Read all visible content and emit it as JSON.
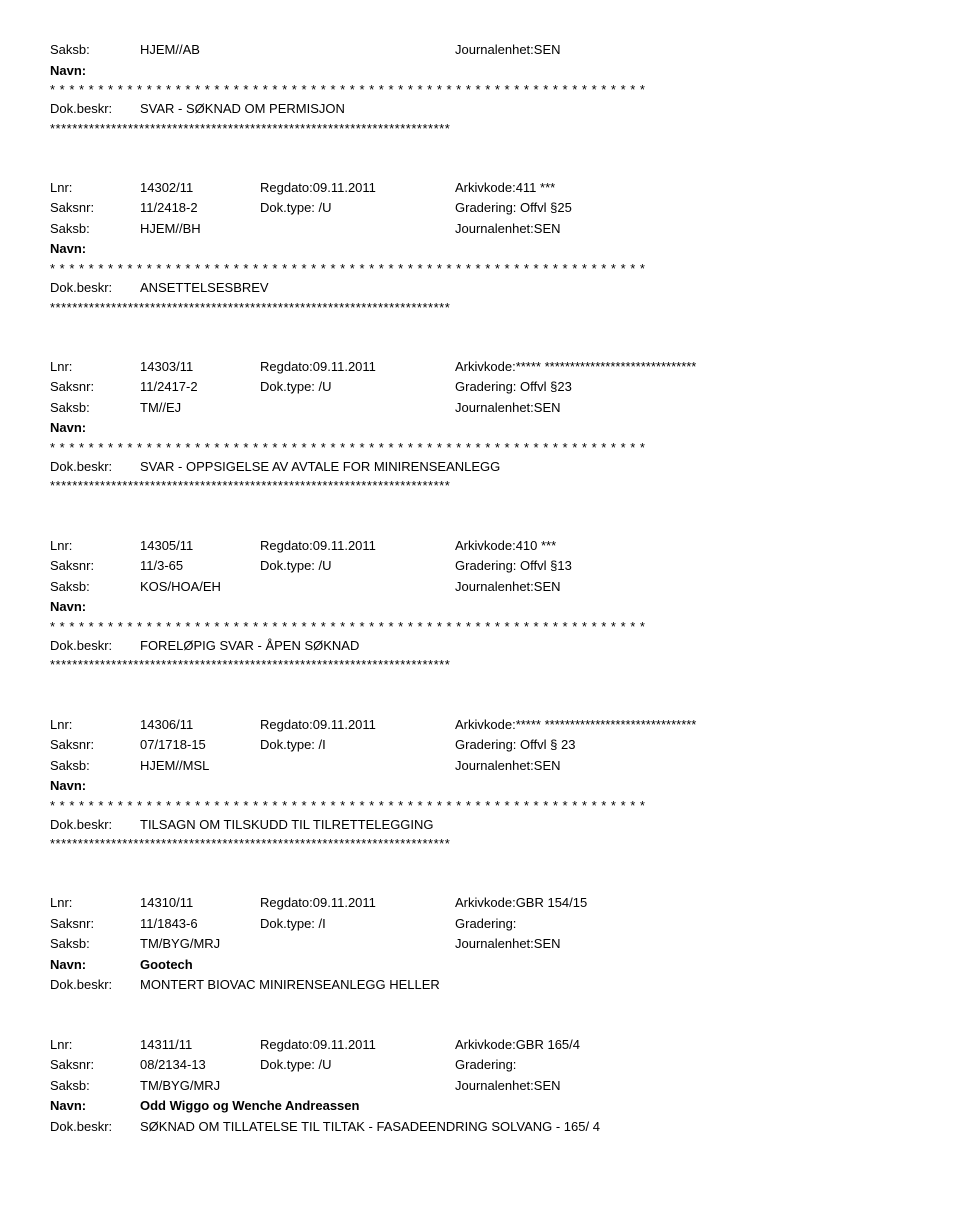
{
  "labels": {
    "saksb": "Saksb:",
    "navn": "Navn:",
    "dokbeskr": "Dok.beskr:",
    "lnr": "Lnr:",
    "saksnr": "Saksnr:"
  },
  "stars62": "* * * * * * * * * * * * * * * * * * * * * * * * * * * * * * * * * * * * * * * * * * * * * * * * * * * * * * * * * * * * * *",
  "stars72": "************************************************************************",
  "entries": [
    {
      "saksb_v1": "HJEM//AB",
      "saksb_v3": "Journalenhet:SEN",
      "dokbeskr": "SVAR - SØKNAD OM PERMISJON"
    },
    {
      "lnr_v1": "14302/11",
      "lnr_v2": "Regdato:09.11.2011",
      "lnr_v3": "Arkivkode:411 ***",
      "saksnr_v1": "11/2418-2",
      "saksnr_v2": "Dok.type: /U",
      "saksnr_v3": "Gradering: Offvl §25",
      "saksb_v1": "HJEM//BH",
      "saksb_v3": "Journalenhet:SEN",
      "dokbeskr": "ANSETTELSESBREV"
    },
    {
      "lnr_v1": "14303/11",
      "lnr_v2": "Regdato:09.11.2011",
      "lnr_v3": "Arkivkode:***** ******************************",
      "saksnr_v1": "11/2417-2",
      "saksnr_v2": "Dok.type: /U",
      "saksnr_v3": "Gradering: Offvl §23",
      "saksb_v1": "TM//EJ",
      "saksb_v3": "Journalenhet:SEN",
      "dokbeskr": "SVAR - OPPSIGELSE AV AVTALE FOR MINIRENSEANLEGG"
    },
    {
      "lnr_v1": "14305/11",
      "lnr_v2": "Regdato:09.11.2011",
      "lnr_v3": "Arkivkode:410 ***",
      "saksnr_v1": "11/3-65",
      "saksnr_v2": "Dok.type: /U",
      "saksnr_v3": "Gradering: Offvl §13",
      "saksb_v1": "KOS/HOA/EH",
      "saksb_v3": "Journalenhet:SEN",
      "dokbeskr": "FORELØPIG SVAR - ÅPEN SØKNAD"
    },
    {
      "lnr_v1": "14306/11",
      "lnr_v2": "Regdato:09.11.2011",
      "lnr_v3": "Arkivkode:***** ******************************",
      "saksnr_v1": "07/1718-15",
      "saksnr_v2": "Dok.type: /I",
      "saksnr_v3": "Gradering: Offvl § 23",
      "saksb_v1": "HJEM//MSL",
      "saksb_v3": "Journalenhet:SEN",
      "dokbeskr": "TILSAGN OM TILSKUDD TIL TILRETTELEGGING"
    },
    {
      "lnr_v1": "14310/11",
      "lnr_v2": "Regdato:09.11.2011",
      "lnr_v3": "Arkivkode:GBR 154/15",
      "saksnr_v1": "11/1843-6",
      "saksnr_v2": "Dok.type: /I",
      "saksnr_v3": "Gradering:",
      "saksb_v1": "TM/BYG/MRJ",
      "saksb_v3": "Journalenhet:SEN",
      "navn_val": "Gootech",
      "dokbeskr": "MONTERT BIOVAC MINIRENSEANLEGG HELLER",
      "no_stars": true
    },
    {
      "lnr_v1": "14311/11",
      "lnr_v2": "Regdato:09.11.2011",
      "lnr_v3": "Arkivkode:GBR 165/4",
      "saksnr_v1": "08/2134-13",
      "saksnr_v2": "Dok.type: /U",
      "saksnr_v3": "Gradering:",
      "saksb_v1": "TM/BYG/MRJ",
      "saksb_v3": "Journalenhet:SEN",
      "navn_val": "Odd Wiggo og Wenche Andreassen",
      "dokbeskr": "SØKNAD OM TILLATELSE TIL TILTAK - FASADEENDRING SOLVANG - 165/ 4",
      "no_stars": true
    }
  ]
}
